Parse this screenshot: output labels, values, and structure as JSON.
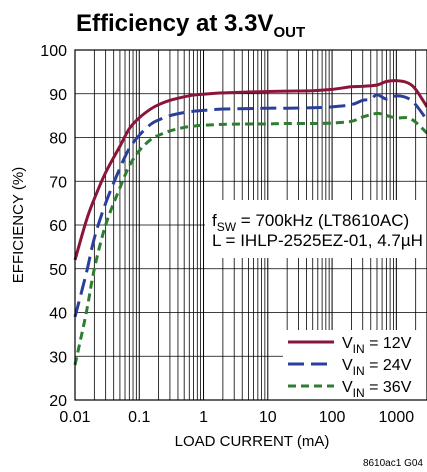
{
  "chart_data": {
    "type": "line",
    "title": {
      "main": "Efficiency at 3.3V",
      "sub": "OUT"
    },
    "xlabel": "LOAD CURRENT (mA)",
    "ylabel": "EFFICIENCY (%)",
    "xscale": "log",
    "xlim": [
      0.01,
      3000
    ],
    "ylim": [
      20,
      100
    ],
    "xticks": [
      0.01,
      0.1,
      1,
      10,
      100,
      1000
    ],
    "xtick_labels": [
      "0.01",
      "0.1",
      "1",
      "10",
      "100",
      "1000"
    ],
    "yticks": [
      20,
      30,
      40,
      50,
      60,
      70,
      80,
      90,
      100
    ],
    "ytick_labels": [
      "20",
      "30",
      "40",
      "50",
      "60",
      "70",
      "80",
      "90",
      "100"
    ],
    "grid": true,
    "legend_position": "bottom-right",
    "annotation": {
      "line1": {
        "a": "f",
        "b": "SW",
        "c": " = 700kHz (LT8610AC)"
      },
      "line2": "L = IHLP-2525EZ-01, 4.7µH"
    },
    "series": [
      {
        "legend": {
          "a": "V",
          "b": "IN",
          "c": " = 12V"
        },
        "color": "#8b1538",
        "style": "solid",
        "x": [
          0.01,
          0.015,
          0.02,
          0.03,
          0.05,
          0.07,
          0.1,
          0.15,
          0.2,
          0.3,
          0.5,
          0.7,
          1,
          2,
          5,
          10,
          20,
          50,
          100,
          200,
          300,
          500,
          700,
          1000,
          1500,
          2000,
          3000
        ],
        "y": [
          52,
          61,
          66,
          72,
          78,
          82,
          84.5,
          86.5,
          87.5,
          88.5,
          89.3,
          89.7,
          89.9,
          90.2,
          90.4,
          90.5,
          90.6,
          90.7,
          91,
          91.6,
          91.7,
          92,
          92.8,
          93,
          92.5,
          91,
          87
        ]
      },
      {
        "legend": {
          "a": "V",
          "b": "IN",
          "c": " = 24V"
        },
        "color": "#2a3f9c",
        "style": "dashed",
        "x": [
          0.01,
          0.015,
          0.02,
          0.03,
          0.05,
          0.07,
          0.1,
          0.15,
          0.2,
          0.3,
          0.5,
          0.7,
          1,
          2,
          5,
          10,
          20,
          50,
          100,
          200,
          300,
          400,
          500,
          700,
          1000,
          1500,
          2000,
          3000
        ],
        "y": [
          39,
          49,
          57,
          65,
          73,
          77.5,
          80.5,
          83,
          84,
          85,
          85.7,
          86,
          86.2,
          86.5,
          86.6,
          86.7,
          86.7,
          86.8,
          87,
          87.5,
          88.5,
          88.7,
          89.8,
          88.8,
          89.5,
          89,
          87.5,
          84
        ]
      },
      {
        "legend": {
          "a": "V",
          "b": "IN",
          "c": " = 36V"
        },
        "color": "#2e7d32",
        "style": "dotted",
        "x": [
          0.01,
          0.015,
          0.02,
          0.03,
          0.05,
          0.07,
          0.1,
          0.15,
          0.2,
          0.3,
          0.5,
          0.7,
          1,
          2,
          5,
          10,
          20,
          50,
          100,
          200,
          300,
          500,
          700,
          1000,
          1500,
          2000,
          3000
        ],
        "y": [
          28,
          40,
          50,
          60,
          68.5,
          73.5,
          77,
          79.5,
          80.5,
          81.5,
          82.3,
          82.6,
          82.8,
          83,
          83.1,
          83.1,
          83.2,
          83.2,
          83.3,
          83.7,
          84.7,
          85.5,
          85,
          84.5,
          84.5,
          83.5,
          81
        ]
      }
    ]
  },
  "figure_id": "8610ac1 G04"
}
